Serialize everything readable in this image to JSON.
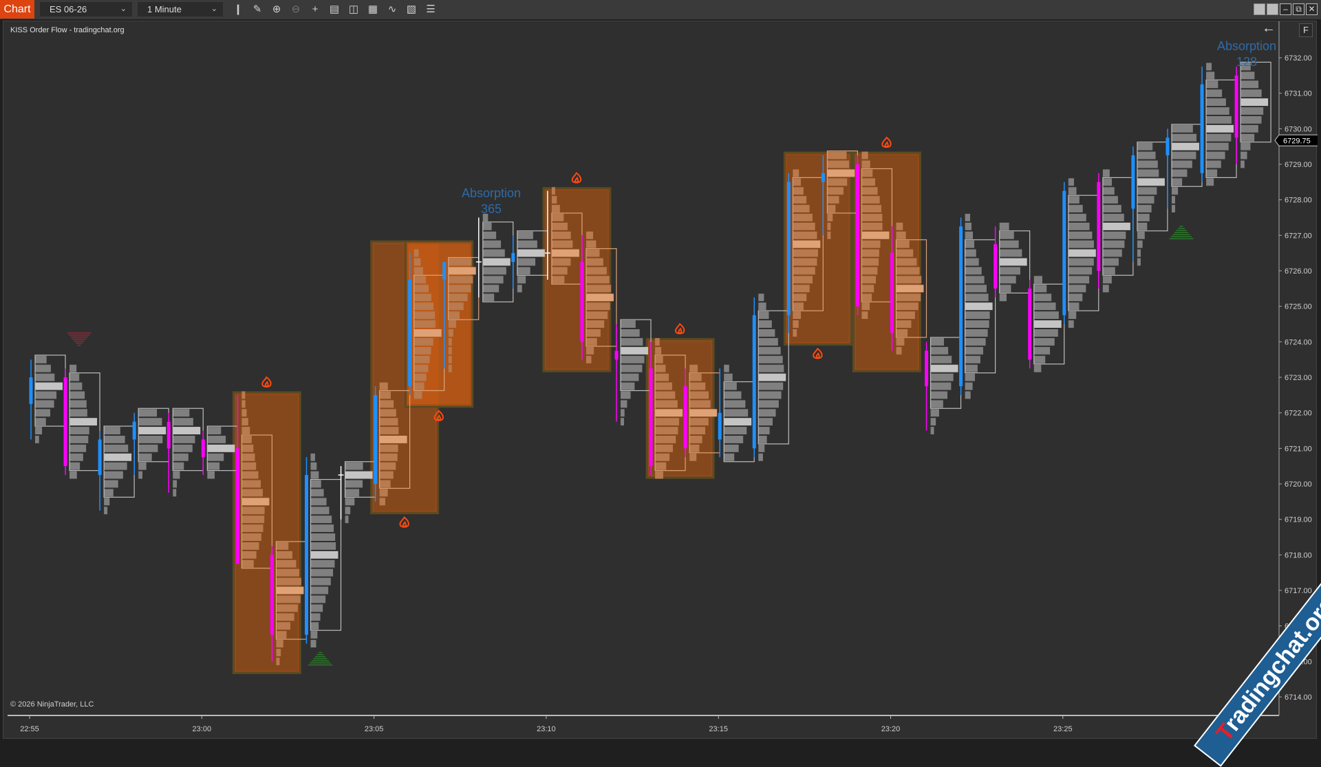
{
  "toolbar": {
    "chart_label": "Chart",
    "instrument": "ES 06-26",
    "interval": "1 Minute",
    "icons": [
      "bar-type-icon",
      "drawing-tools-icon",
      "zoom-in-icon",
      "zoom-out-icon",
      "crosshair-icon",
      "data-box-icon",
      "properties-icon",
      "strategies-icon",
      "indicators-icon",
      "templates-icon",
      "list-icon"
    ],
    "window_buttons": [
      "tile-1-icon",
      "tile-2-icon",
      "minimize-icon",
      "restore-icon",
      "close-icon"
    ]
  },
  "chart": {
    "indicator_label": "KISS Order Flow - tradingchat.org",
    "copyright": "© 2026 NinjaTrader, LLC",
    "f_button": "F",
    "last_price": "6729.75",
    "absorption_labels": [
      {
        "title": "Absorption",
        "value": "365"
      },
      {
        "title": "Absorption",
        "value": "128"
      }
    ],
    "watermark": "Tradingchat.org",
    "colors": {
      "background": "#2f2f2f",
      "up": "#1e90ff",
      "down": "#ff00ff",
      "doji": "#ffffff",
      "profile": "#808080",
      "poc": "#c4c4c4",
      "absorption_box": "#8a4a1c",
      "flame": "#ff4a10",
      "accent": "#dd4410"
    }
  },
  "chart_data": {
    "type": "candlestick-footprint",
    "price_ticks": [
      "6714.00",
      "6715.00",
      "6716.00",
      "6717.00",
      "6718.00",
      "6719.00",
      "6720.00",
      "6721.00",
      "6722.00",
      "6723.00",
      "6724.00",
      "6725.00",
      "6726.00",
      "6727.00",
      "6728.00",
      "6729.00",
      "6730.00",
      "6731.00",
      "6732.00"
    ],
    "time_ticks": [
      "22:55",
      "23:00",
      "23:05",
      "23:10",
      "23:15",
      "23:20",
      "23:25",
      "23:30"
    ],
    "ylim": [
      6713.5,
      6732.5
    ],
    "tick_size": 0.25,
    "bars": [
      {
        "t": "22:55",
        "o": 6722.25,
        "h": 6723.5,
        "l": 6721.25,
        "c": 6723.0
      },
      {
        "t": "22:56",
        "o": 6723.0,
        "h": 6723.25,
        "l": 6720.25,
        "c": 6720.5
      },
      {
        "t": "22:57",
        "o": 6720.25,
        "h": 6721.5,
        "l": 6719.25,
        "c": 6721.25
      },
      {
        "t": "22:58",
        "o": 6721.25,
        "h": 6722.0,
        "l": 6720.25,
        "c": 6721.75
      },
      {
        "t": "22:59",
        "o": 6721.75,
        "h": 6722.0,
        "l": 6719.75,
        "c": 6721.0
      },
      {
        "t": "23:00",
        "o": 6721.25,
        "h": 6721.5,
        "l": 6720.25,
        "c": 6720.75
      },
      {
        "t": "23:01",
        "o": 6721.0,
        "h": 6722.5,
        "l": 6717.75,
        "c": 6717.75
      },
      {
        "t": "23:02",
        "o": 6718.0,
        "h": 6718.25,
        "l": 6715.0,
        "c": 6715.75
      },
      {
        "t": "23:03",
        "o": 6715.75,
        "h": 6720.75,
        "l": 6715.5,
        "c": 6720.25
      },
      {
        "t": "23:04",
        "o": 6720.25,
        "h": 6720.5,
        "l": 6719.0,
        "c": 6720.25
      },
      {
        "t": "23:05",
        "o": 6720.0,
        "h": 6722.75,
        "l": 6719.5,
        "c": 6722.5
      },
      {
        "t": "23:06",
        "o": 6722.75,
        "h": 6726.5,
        "l": 6722.5,
        "c": 6725.75
      },
      {
        "t": "23:07",
        "o": 6725.75,
        "h": 6726.25,
        "l": 6723.25,
        "c": 6726.25
      },
      {
        "t": "23:08",
        "o": 6726.25,
        "h": 6727.5,
        "l": 6725.25,
        "c": 6726.25
      },
      {
        "t": "23:09",
        "o": 6726.25,
        "h": 6727.0,
        "l": 6725.5,
        "c": 6726.5
      },
      {
        "t": "23:10",
        "o": 6726.5,
        "h": 6728.25,
        "l": 6725.75,
        "c": 6726.5
      },
      {
        "t": "23:11",
        "o": 6726.25,
        "h": 6727.0,
        "l": 6723.5,
        "c": 6724.0
      },
      {
        "t": "23:12",
        "o": 6723.75,
        "h": 6724.5,
        "l": 6721.75,
        "c": 6723.5
      },
      {
        "t": "23:13",
        "o": 6723.25,
        "h": 6724.0,
        "l": 6720.25,
        "c": 6720.5
      },
      {
        "t": "23:14",
        "o": 6722.75,
        "h": 6723.25,
        "l": 6720.75,
        "c": 6721.0
      },
      {
        "t": "23:15",
        "o": 6721.25,
        "h": 6723.25,
        "l": 6720.75,
        "c": 6722.0
      },
      {
        "t": "23:16",
        "o": 6721.0,
        "h": 6725.25,
        "l": 6720.75,
        "c": 6724.75
      },
      {
        "t": "23:17",
        "o": 6724.75,
        "h": 6728.75,
        "l": 6724.25,
        "c": 6728.5
      },
      {
        "t": "23:18",
        "o": 6728.5,
        "h": 6729.25,
        "l": 6727.0,
        "c": 6728.75
      },
      {
        "t": "23:19",
        "o": 6729.0,
        "h": 6729.25,
        "l": 6724.75,
        "c": 6725.0
      },
      {
        "t": "23:20",
        "o": 6726.5,
        "h": 6727.25,
        "l": 6723.75,
        "c": 6724.25
      },
      {
        "t": "23:21",
        "o": 6723.75,
        "h": 6724.0,
        "l": 6721.5,
        "c": 6722.75
      },
      {
        "t": "23:22",
        "o": 6722.75,
        "h": 6727.5,
        "l": 6722.5,
        "c": 6727.25
      },
      {
        "t": "23:23",
        "o": 6726.75,
        "h": 6727.25,
        "l": 6725.25,
        "c": 6725.5
      },
      {
        "t": "23:24",
        "o": 6725.5,
        "h": 6725.75,
        "l": 6723.25,
        "c": 6723.5
      },
      {
        "t": "23:25",
        "o": 6724.75,
        "h": 6728.5,
        "l": 6724.5,
        "c": 6728.25
      },
      {
        "t": "23:26",
        "o": 6728.5,
        "h": 6728.75,
        "l": 6725.5,
        "c": 6726.0
      },
      {
        "t": "23:27",
        "o": 6727.75,
        "h": 6729.5,
        "l": 6726.25,
        "c": 6729.25
      },
      {
        "t": "23:28",
        "o": 6729.25,
        "h": 6730.0,
        "l": 6727.75,
        "c": 6729.75
      },
      {
        "t": "23:29",
        "o": 6728.75,
        "h": 6731.75,
        "l": 6728.5,
        "c": 6731.25
      },
      {
        "t": "23:30",
        "o": 6731.5,
        "h": 6731.75,
        "l": 6729.0,
        "c": 6729.75
      }
    ],
    "absorption_zones": [
      {
        "from": "23:01",
        "to": "23:02",
        "top": 6722.5,
        "bottom": 6714.75,
        "flame": "above"
      },
      {
        "from": "23:05",
        "to": "23:06",
        "top": 6726.75,
        "bottom": 6719.25,
        "flame": "below"
      },
      {
        "from": "23:06",
        "to": "23:07",
        "top": 6726.75,
        "bottom": 6722.25,
        "flame": "below"
      },
      {
        "from": "23:10",
        "to": "23:11",
        "top": 6728.25,
        "bottom": 6723.25,
        "flame": "above"
      },
      {
        "from": "23:13",
        "to": "23:14",
        "top": 6724.0,
        "bottom": 6720.25,
        "flame": "above"
      },
      {
        "from": "23:17",
        "to": "23:18",
        "top": 6729.25,
        "bottom": 6724.0,
        "flame": "below"
      },
      {
        "from": "23:19",
        "to": "23:20",
        "top": 6729.25,
        "bottom": 6723.25,
        "flame": "above"
      }
    ],
    "signals": [
      {
        "t": "22:56",
        "type": "sell-triangle",
        "price": 6724.25,
        "color": "#8a2a3a"
      },
      {
        "t": "23:03",
        "type": "buy-triangle",
        "price": 6715.25,
        "color": "#2a7a2a"
      },
      {
        "t": "23:28",
        "type": "buy-triangle",
        "price": 6727.25,
        "color": "#2a7a2a"
      }
    ]
  }
}
